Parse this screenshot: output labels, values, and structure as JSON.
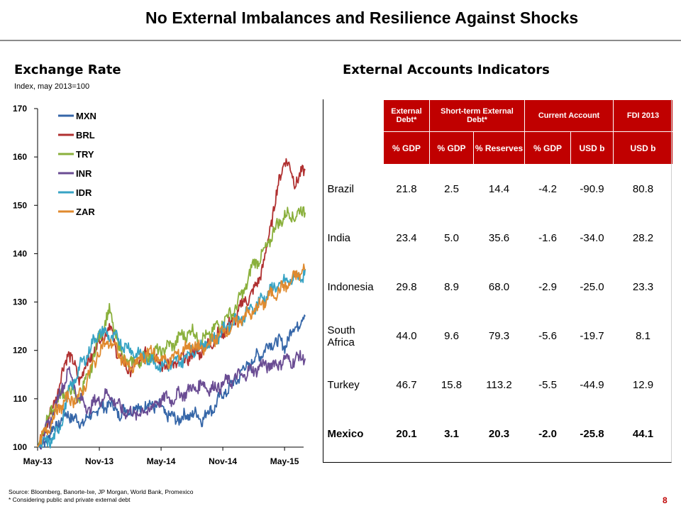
{
  "slide": {
    "title": "No External Imbalances and Resilience Against Shocks",
    "left_title": "Exchange Rate",
    "left_subtitle": "Index, may 2013=100",
    "right_title": "External Accounts Indicators",
    "source": "Source: Bloomberg, Banorte-Ixe, JP Morgan, World Bank, Promexico",
    "footnote": "* Considering public and private external debt",
    "page_number": "8"
  },
  "chart_data": {
    "type": "line",
    "ylim": [
      100,
      170
    ],
    "yticks": [
      100,
      110,
      120,
      130,
      140,
      150,
      160,
      170
    ],
    "xticks": [
      "May-13",
      "Nov-13",
      "May-14",
      "Nov-14",
      "May-15"
    ],
    "xticks_month_index": [
      0,
      6,
      12,
      18,
      24
    ],
    "x_range_months": [
      0,
      25.3
    ],
    "legend_position": "top-left",
    "series": [
      {
        "name": "MXN",
        "color": "#3566a8",
        "values": [
          100,
          102,
          105,
          107,
          105,
          106,
          108,
          109,
          107,
          108,
          108,
          109,
          108,
          106,
          106,
          107,
          106,
          108,
          111,
          113,
          116,
          118,
          120,
          122,
          121,
          125,
          127
        ]
      },
      {
        "name": "BRL",
        "color": "#b03030",
        "values": [
          100,
          105,
          112,
          120,
          114,
          118,
          122,
          125,
          118,
          116,
          118,
          120,
          117,
          117,
          118,
          119,
          120,
          122,
          124,
          126,
          130,
          132,
          138,
          150,
          160,
          155,
          157
        ]
      },
      {
        "name": "TRY",
        "color": "#8ab03c",
        "values": [
          100,
          106,
          110,
          112,
          110,
          115,
          123,
          128,
          120,
          117,
          118,
          119,
          120,
          121,
          123,
          124,
          122,
          124,
          126,
          128,
          132,
          138,
          140,
          145,
          148,
          148,
          149
        ]
      },
      {
        "name": "INR",
        "color": "#6a4c93",
        "values": [
          100,
          104,
          110,
          116,
          110,
          108,
          110,
          111,
          108,
          107,
          107,
          108,
          110,
          110,
          111,
          112,
          113,
          112,
          113,
          114,
          115,
          116,
          117,
          117,
          118,
          118,
          119
        ]
      },
      {
        "name": "IDR",
        "color": "#37a3c4",
        "values": [
          100,
          101,
          103,
          111,
          116,
          120,
          124,
          123,
          122,
          120,
          119,
          118,
          117,
          117,
          118,
          120,
          121,
          122,
          124,
          126,
          127,
          129,
          131,
          133,
          134,
          135,
          136
        ]
      },
      {
        "name": "ZAR",
        "color": "#e08a2e",
        "values": [
          100,
          104,
          108,
          110,
          110,
          115,
          120,
          122,
          119,
          116,
          118,
          120,
          118,
          118,
          120,
          121,
          120,
          122,
          124,
          125,
          127,
          128,
          130,
          132,
          133,
          135,
          137
        ]
      }
    ]
  },
  "table": {
    "header1": [
      "",
      "External Debt*",
      "Short-term External Debt*",
      "Current Account",
      "FDI 2013"
    ],
    "header2": [
      "% GDP",
      "% GDP",
      "% Reserves",
      "% GDP",
      "USD b",
      "USD b"
    ],
    "rows": [
      {
        "country": "Brazil",
        "values": [
          "21.8",
          "2.5",
          "14.4",
          "-4.2",
          "-90.9",
          "80.8"
        ]
      },
      {
        "country": "India",
        "values": [
          "23.4",
          "5.0",
          "35.6",
          "-1.6",
          "-34.0",
          "28.2"
        ]
      },
      {
        "country": "Indonesia",
        "values": [
          "29.8",
          "8.9",
          "68.0",
          "-2.9",
          "-25.0",
          "23.3"
        ]
      },
      {
        "country": "South Africa",
        "values": [
          "44.0",
          "9.6",
          "79.3",
          "-5.6",
          "-19.7",
          "8.1"
        ]
      },
      {
        "country": "Turkey",
        "values": [
          "46.7",
          "15.8",
          "113.2",
          "-5.5",
          "-44.9",
          "12.9"
        ]
      },
      {
        "country": "Mexico",
        "values": [
          "20.1",
          "3.1",
          "20.3",
          "-2.0",
          "-25.8",
          "44.1"
        ]
      }
    ]
  }
}
